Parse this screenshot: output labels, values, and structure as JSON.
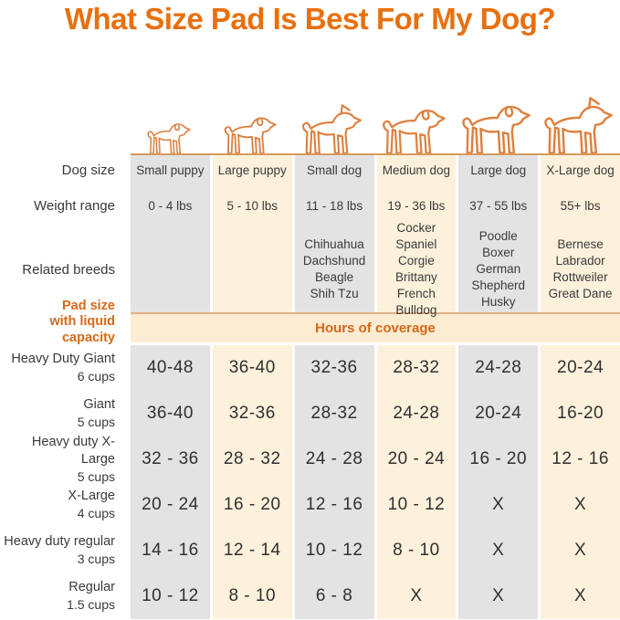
{
  "title": "What Size Pad Is Best For My Dog?",
  "labels": {
    "dog_size": "Dog size",
    "weight_range": "Weight range",
    "related_breeds": "Related breeds",
    "pad_size_line1": "Pad size",
    "pad_size_line2": "with liquid capacity",
    "hours_of_coverage": "Hours of coverage"
  },
  "columns": [
    {
      "name": "Small puppy",
      "weight": "0 - 4 lbs",
      "breeds": [],
      "icon": "small-puppy-icon"
    },
    {
      "name": "Large puppy",
      "weight": "5 - 10 lbs",
      "breeds": [],
      "icon": "large-puppy-icon"
    },
    {
      "name": "Small dog",
      "weight": "11 - 18 lbs",
      "breeds": [
        "Chihuahua",
        "Dachshund",
        "Beagle",
        "Shih Tzu"
      ],
      "icon": "small-dog-icon"
    },
    {
      "name": "Medium dog",
      "weight": "19 - 36 lbs",
      "breeds": [
        "Cocker Spaniel",
        "Corgie",
        "Brittany",
        "French Bulldog"
      ],
      "icon": "medium-dog-icon"
    },
    {
      "name": "Large dog",
      "weight": "37 - 55 lbs",
      "breeds": [
        "Poodle",
        "Boxer",
        "German",
        "Shepherd",
        "Husky"
      ],
      "icon": "large-dog-icon"
    },
    {
      "name": "X-Large dog",
      "weight": "55+ lbs",
      "breeds": [
        "Bernese",
        "Labrador",
        "Rottweiler",
        "Great Dane"
      ],
      "icon": "x-large-dog-icon"
    }
  ],
  "pad_rows": [
    {
      "name": "Heavy Duty Giant",
      "capacity": "6 cups",
      "values": [
        "40-48",
        "36-40",
        "32-36",
        "28-32",
        "24-28",
        "20-24"
      ]
    },
    {
      "name": "Giant",
      "capacity": "5 cups",
      "values": [
        "36-40",
        "32-36",
        "28-32",
        "24-28",
        "20-24",
        "16-20"
      ]
    },
    {
      "name": "Heavy duty X-Large",
      "capacity": "5 cups",
      "values": [
        "32 - 36",
        "28 - 32",
        "24 - 28",
        "20 - 24",
        "16 - 20",
        "12 - 16"
      ]
    },
    {
      "name": "X-Large",
      "capacity": "4 cups",
      "values": [
        "20 - 24",
        "16 - 20",
        "12 - 16",
        "10 - 12",
        "X",
        "X"
      ]
    },
    {
      "name": "Heavy duty regular",
      "capacity": "3 cups",
      "values": [
        "14 - 16",
        "12 - 14",
        "10 - 12",
        "8 - 10",
        "X",
        "X"
      ]
    },
    {
      "name": "Regular",
      "capacity": "1.5 cups",
      "values": [
        "10 - 12",
        "8 - 10",
        "6 - 8",
        "X",
        "X",
        "X"
      ]
    }
  ],
  "colors": {
    "title_orange": "#e8700f",
    "subhead_orange": "#d4691a",
    "dog_outline": "#dd8140",
    "ground_line": "#d69a5e",
    "band_border": "#e0b287",
    "band_bg": "#fcecd2",
    "gray_column": "#e3e3e4",
    "cream_column": "#fdf1dc",
    "text_dark": "#3a3a3a"
  },
  "chart_data": {
    "type": "table",
    "title": "What Size Pad Is Best For My Dog?",
    "section_header": "Hours of coverage",
    "row_group_label": "Pad size with liquid capacity",
    "columns": [
      "Small puppy",
      "Large puppy",
      "Small dog",
      "Medium dog",
      "Large dog",
      "X-Large dog"
    ],
    "weight_ranges": [
      "0 - 4 lbs",
      "5 - 10 lbs",
      "11 - 18 lbs",
      "19 - 36 lbs",
      "37 - 55 lbs",
      "55+ lbs"
    ],
    "related_breeds": [
      [],
      [],
      [
        "Chihuahua",
        "Dachshund",
        "Beagle",
        "Shih Tzu"
      ],
      [
        "Cocker Spaniel",
        "Corgie",
        "Brittany",
        "French Bulldog"
      ],
      [
        "Poodle",
        "Boxer",
        "German Shepherd",
        "Husky"
      ],
      [
        "Bernese",
        "Labrador",
        "Rottweiler",
        "Great Dane"
      ]
    ],
    "rows": [
      {
        "pad": "Heavy Duty Giant",
        "capacity": "6 cups",
        "hours_by_column": [
          "40-48",
          "36-40",
          "32-36",
          "28-32",
          "24-28",
          "20-24"
        ]
      },
      {
        "pad": "Giant",
        "capacity": "5 cups",
        "hours_by_column": [
          "36-40",
          "32-36",
          "28-32",
          "24-28",
          "20-24",
          "16-20"
        ]
      },
      {
        "pad": "Heavy duty X-Large",
        "capacity": "5 cups",
        "hours_by_column": [
          "32 - 36",
          "28 - 32",
          "24 - 28",
          "20 - 24",
          "16 - 20",
          "12 - 16"
        ]
      },
      {
        "pad": "X-Large",
        "capacity": "4 cups",
        "hours_by_column": [
          "20 - 24",
          "16 - 20",
          "12 - 16",
          "10 - 12",
          "X",
          "X"
        ]
      },
      {
        "pad": "Heavy duty regular",
        "capacity": "3 cups",
        "hours_by_column": [
          "14 - 16",
          "12 - 14",
          "10 - 12",
          "8 - 10",
          "X",
          "X"
        ]
      },
      {
        "pad": "Regular",
        "capacity": "1.5 cups",
        "hours_by_column": [
          "10 - 12",
          "8 - 10",
          "6 - 8",
          "X",
          "X",
          "X"
        ]
      }
    ]
  }
}
